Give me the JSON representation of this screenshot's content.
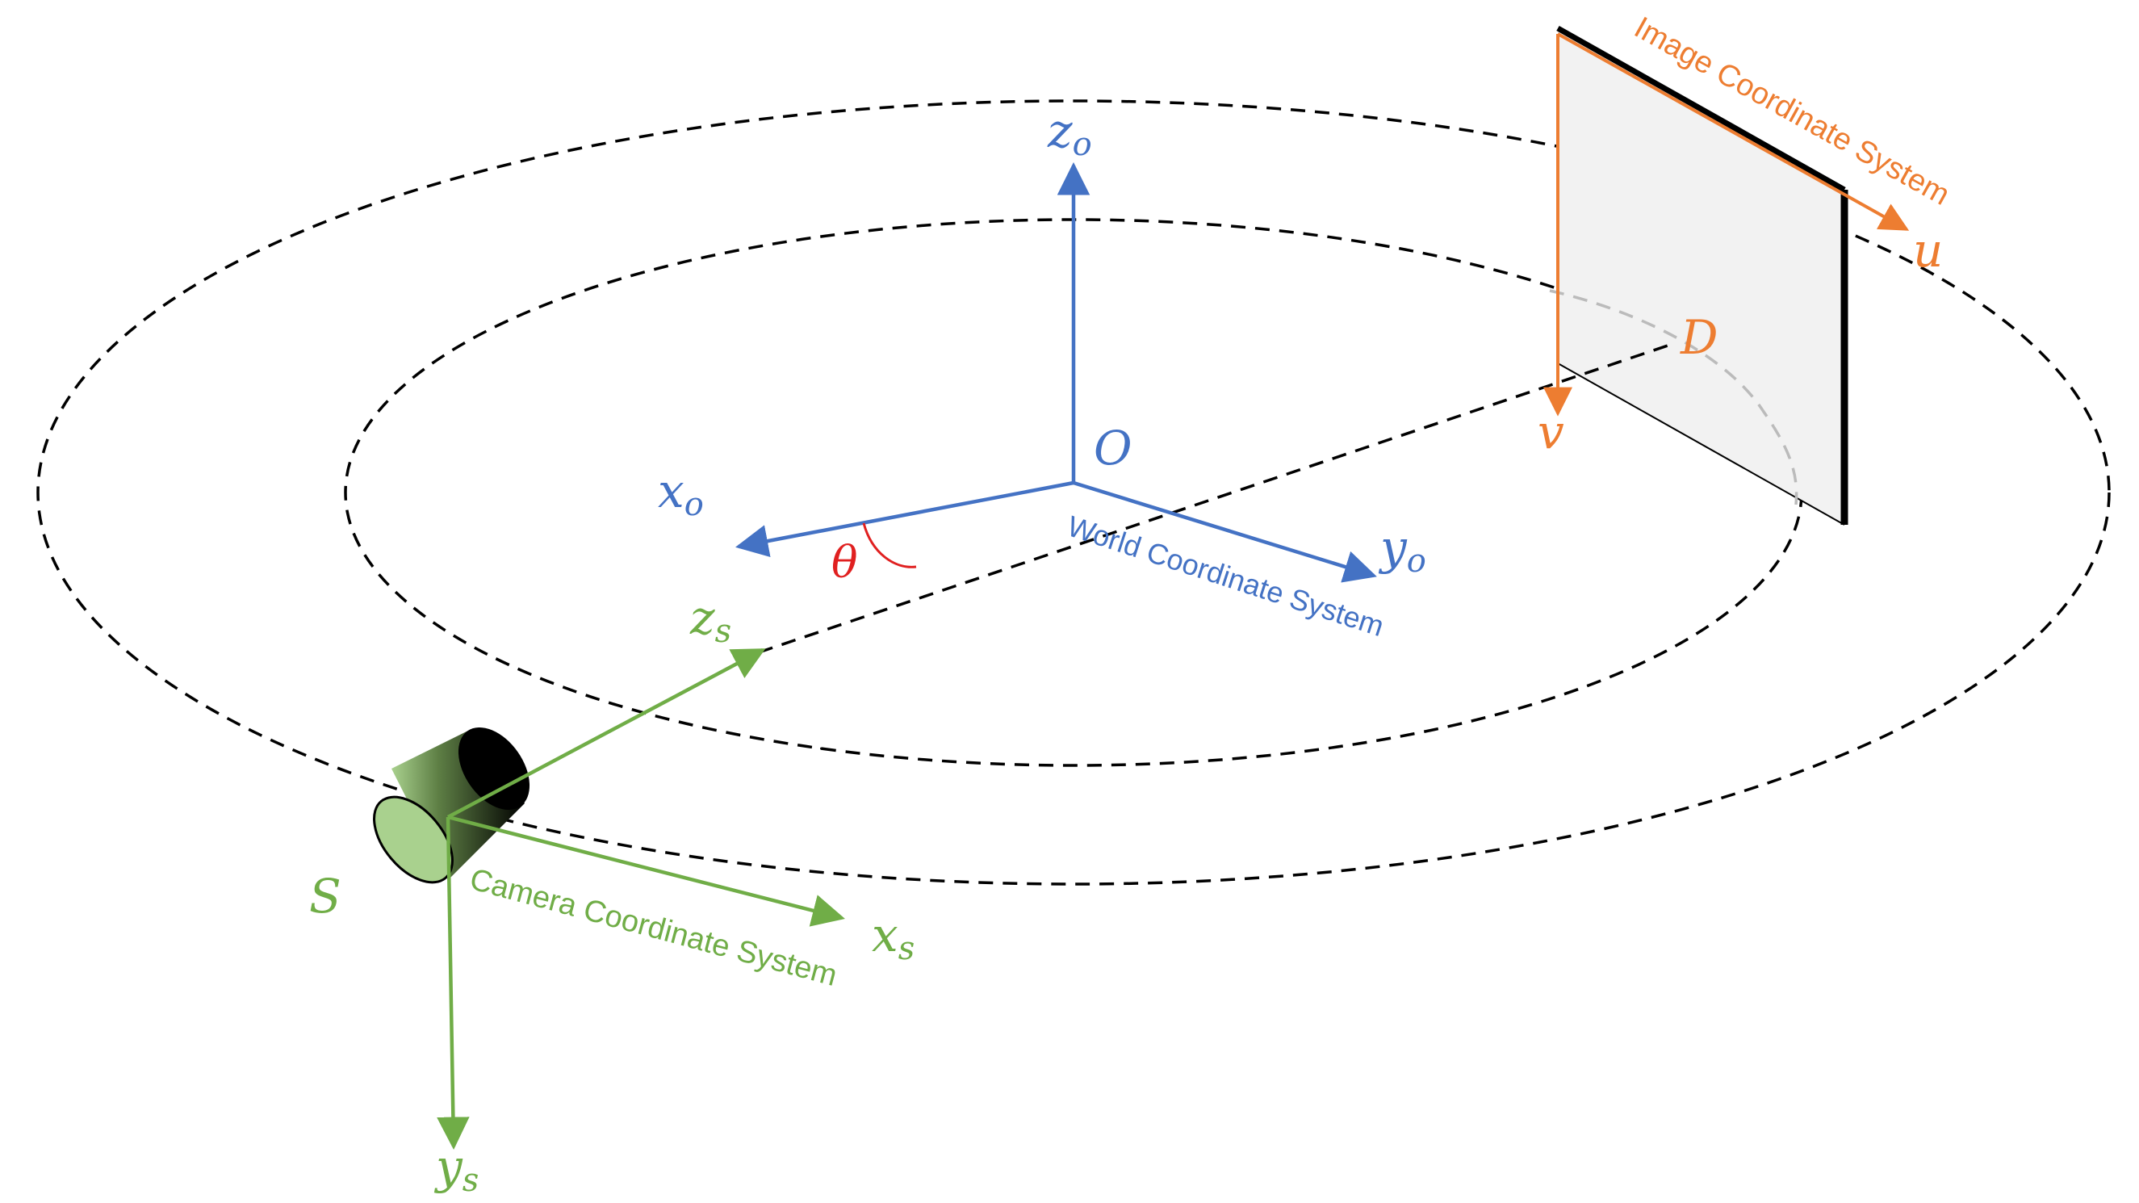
{
  "colors": {
    "world": "#4472C4",
    "camera": "#70AD47",
    "image": "#ED7D31",
    "angle": "#E02020",
    "orbit": "#000000",
    "plane_fill": "#F2F2F2",
    "plane_edge": "#000000",
    "hidden_arc": "#BBBBBB"
  },
  "world": {
    "origin_label": "O",
    "x_axis": {
      "main": "x",
      "sub": "o"
    },
    "y_axis": {
      "main": "y",
      "sub": "o"
    },
    "z_axis": {
      "main": "z",
      "sub": "o"
    },
    "caption": "World Coordinate System"
  },
  "camera": {
    "source_label": "S",
    "x_axis": {
      "main": "x",
      "sub": "s"
    },
    "y_axis": {
      "main": "y",
      "sub": "s"
    },
    "z_axis": {
      "main": "z",
      "sub": "s"
    },
    "caption": "Camera Coordinate System",
    "icon": "camera-cylinder-icon"
  },
  "image": {
    "u_label": "u",
    "v_label": "v",
    "detector_label": "D",
    "caption": "Image Coordinate System"
  },
  "angle": {
    "label": "θ"
  }
}
